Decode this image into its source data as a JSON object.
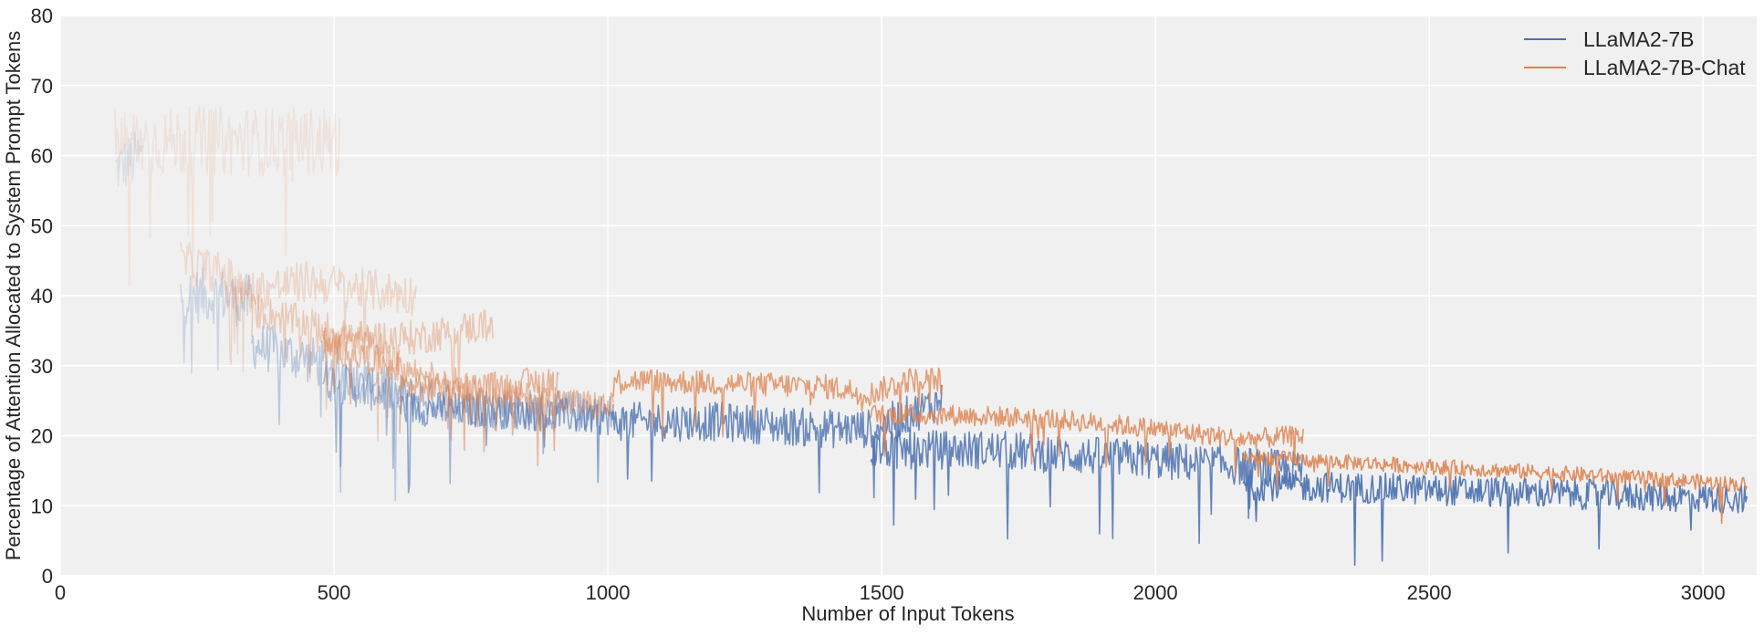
{
  "chart_data": {
    "type": "line",
    "title": "",
    "xlabel": "Number of Input Tokens",
    "ylabel": "Percentage of Attention Allocated to System Prompt Tokens",
    "xlim": [
      0,
      3098
    ],
    "ylim": [
      0,
      80
    ],
    "xticks": [
      0,
      500,
      1000,
      1500,
      2000,
      2500,
      3000
    ],
    "yticks": [
      0,
      10,
      20,
      30,
      40,
      50,
      60,
      70,
      80
    ],
    "grid": true,
    "legend_position": "top-right",
    "background": "#F0F0F0",
    "series": [
      {
        "name": "LLaMA2-7B",
        "color": "#4C72B0",
        "segments": [
          {
            "opacity": 0.12,
            "noise": 4,
            "trend": [
              [
                100,
                58
              ],
              [
                150,
                60
              ]
            ]
          },
          {
            "opacity": 0.22,
            "noise": 4,
            "trend": [
              [
                220,
                40
              ],
              [
                300,
                40
              ],
              [
                350,
                39
              ]
            ]
          },
          {
            "opacity": 0.32,
            "noise": 3.5,
            "trend": [
              [
                350,
                33
              ],
              [
                450,
                31
              ],
              [
                550,
                28
              ],
              [
                620,
                26
              ]
            ]
          },
          {
            "opacity": 0.45,
            "noise": 3,
            "trend": [
              [
                480,
                28
              ],
              [
                600,
                26
              ],
              [
                800,
                24
              ],
              [
                1010,
                23
              ]
            ]
          },
          {
            "opacity": 0.6,
            "noise": 2.5,
            "trend": [
              [
                620,
                24
              ],
              [
                800,
                23.5
              ],
              [
                1010,
                22.5
              ]
            ]
          },
          {
            "opacity": 0.8,
            "noise": 2.8,
            "trend": [
              [
                1010,
                22
              ],
              [
                1200,
                22
              ],
              [
                1400,
                21
              ],
              [
                1480,
                21
              ],
              [
                1550,
                23
              ],
              [
                1610,
                25
              ]
            ]
          },
          {
            "opacity": 0.85,
            "noise": 2.8,
            "trend": [
              [
                1480,
                18
              ],
              [
                1700,
                18
              ],
              [
                1900,
                17
              ],
              [
                2100,
                16
              ],
              [
                2270,
                15
              ]
            ]
          },
          {
            "opacity": 0.92,
            "noise": 2.2,
            "trend": [
              [
                2160,
                13
              ],
              [
                2400,
                12.5
              ],
              [
                2700,
                11.8
              ],
              [
                3080,
                11
              ]
            ]
          }
        ]
      },
      {
        "name": "LLaMA2-7B-Chat",
        "color": "#DD8452",
        "segments": [
          {
            "opacity": 0.12,
            "noise": 5,
            "trend": [
              [
                100,
                62
              ],
              [
                300,
                62
              ],
              [
                510,
                62
              ]
            ]
          },
          {
            "opacity": 0.22,
            "noise": 3,
            "trend": [
              [
                220,
                45
              ],
              [
                300,
                43
              ],
              [
                350,
                40
              ]
            ]
          },
          {
            "opacity": 0.25,
            "noise": 3,
            "trend": [
              [
                300,
                40
              ],
              [
                450,
                42
              ],
              [
                650,
                40
              ]
            ]
          },
          {
            "opacity": 0.35,
            "noise": 2.5,
            "trend": [
              [
                350,
                38
              ],
              [
                500,
                35
              ],
              [
                620,
                31
              ]
            ]
          },
          {
            "opacity": 0.38,
            "noise": 2.5,
            "trend": [
              [
                480,
                34
              ],
              [
                650,
                34
              ],
              [
                790,
                36
              ]
            ]
          },
          {
            "opacity": 0.5,
            "noise": 2.2,
            "trend": [
              [
                480,
                33
              ],
              [
                650,
                29
              ],
              [
                800,
                26
              ],
              [
                1010,
                24
              ]
            ]
          },
          {
            "opacity": 0.55,
            "noise": 2.2,
            "trend": [
              [
                620,
                27
              ],
              [
                800,
                27
              ],
              [
                910,
                28
              ]
            ]
          },
          {
            "opacity": 0.75,
            "noise": 1.8,
            "trend": [
              [
                1010,
                28
              ],
              [
                1200,
                27.5
              ],
              [
                1400,
                27
              ],
              [
                1480,
                26
              ],
              [
                1550,
                28
              ],
              [
                1610,
                28
              ]
            ]
          },
          {
            "opacity": 0.82,
            "noise": 1.5,
            "trend": [
              [
                1480,
                23
              ],
              [
                1610,
                23
              ],
              [
                1800,
                22.5
              ],
              [
                2000,
                21
              ],
              [
                2160,
                19.5
              ],
              [
                2270,
                20
              ]
            ]
          },
          {
            "opacity": 0.9,
            "noise": 1.1,
            "trend": [
              [
                2160,
                17
              ],
              [
                2400,
                16
              ],
              [
                2700,
                14.8
              ],
              [
                3080,
                13
              ]
            ]
          }
        ]
      }
    ]
  }
}
